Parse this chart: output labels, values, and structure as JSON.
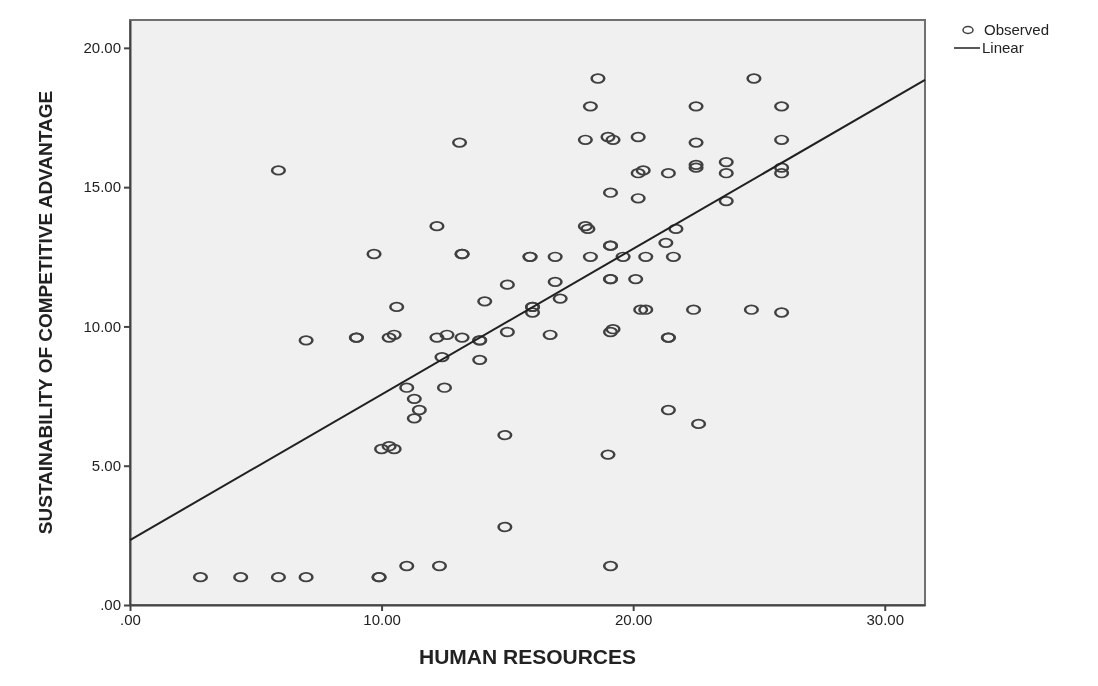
{
  "chart_data": {
    "type": "scatter",
    "xlabel": "HUMAN RESOURCES",
    "ylabel": "SUSTAINABILITY OF COMPETITIVE ADVANTAGE",
    "xlim": [
      0,
      31.6
    ],
    "ylim": [
      0,
      21
    ],
    "xticks": [
      {
        "value": 0,
        "label": ".00"
      },
      {
        "value": 10,
        "label": "10.00"
      },
      {
        "value": 20,
        "label": "20.00"
      },
      {
        "value": 30,
        "label": "30.00"
      }
    ],
    "yticks": [
      {
        "value": 0,
        "label": ".00"
      },
      {
        "value": 5,
        "label": "5.00"
      },
      {
        "value": 10,
        "label": "10.00"
      },
      {
        "value": 15,
        "label": "15.00"
      },
      {
        "value": 20,
        "label": "20.00"
      }
    ],
    "legend": "top right",
    "grid": false,
    "series": [
      {
        "name": "Observed",
        "color": "#404040",
        "marker": "circle",
        "x": [
          2.8,
          4.4,
          5.9,
          7.0,
          9.9,
          9.9,
          11.0,
          12.3,
          19.1,
          14.9,
          14.9,
          19.0,
          10.0,
          10.3,
          10.5,
          11.0,
          11.3,
          11.5,
          11.3,
          12.5,
          21.4,
          22.6,
          7.0,
          9.0,
          9.0,
          10.3,
          10.5,
          12.2,
          12.6,
          13.2,
          13.9,
          13.9,
          15.0,
          13.9,
          12.4,
          16.7,
          19.1,
          19.2,
          21.4,
          21.4,
          10.6,
          14.1,
          15.0,
          16.0,
          16.0,
          16.9,
          17.1,
          20.3,
          20.5,
          22.4,
          24.7,
          25.9,
          12.2,
          13.2,
          13.2,
          9.7,
          15.9,
          15.9,
          16.9,
          18.3,
          18.1,
          18.2,
          19.1,
          19.1,
          19.6,
          20.5,
          21.3,
          21.7,
          21.6,
          19.1,
          19.1,
          20.1,
          5.9,
          13.1,
          18.1,
          19.0,
          19.2,
          20.2,
          18.6,
          18.3,
          19.1,
          20.2,
          20.4,
          21.4,
          20.2,
          22.5,
          22.5,
          24.8,
          25.9,
          25.9,
          22.5,
          22.5,
          23.7,
          23.7,
          25.9,
          25.9,
          23.7,
          16.0
        ],
        "values": [
          1.0,
          1.0,
          1.0,
          1.0,
          1.0,
          1.0,
          1.4,
          1.4,
          1.4,
          2.8,
          6.1,
          5.4,
          5.6,
          5.7,
          5.6,
          7.8,
          7.4,
          7.0,
          6.7,
          7.8,
          7.0,
          6.5,
          9.5,
          9.6,
          9.6,
          9.6,
          9.7,
          9.6,
          9.7,
          9.6,
          9.5,
          9.5,
          9.8,
          8.8,
          8.9,
          9.7,
          9.8,
          9.9,
          9.6,
          9.6,
          10.7,
          10.9,
          11.5,
          10.7,
          10.7,
          11.6,
          11.0,
          10.6,
          10.6,
          10.6,
          10.6,
          10.5,
          13.6,
          12.6,
          12.6,
          12.6,
          12.5,
          12.5,
          12.5,
          12.5,
          13.6,
          13.5,
          12.9,
          12.9,
          12.5,
          12.5,
          13.0,
          13.5,
          12.5,
          11.7,
          11.7,
          11.7,
          15.6,
          16.6,
          16.7,
          16.8,
          16.7,
          16.8,
          18.9,
          17.9,
          14.8,
          15.5,
          15.6,
          15.5,
          14.6,
          17.9,
          16.6,
          18.9,
          17.9,
          16.7,
          15.8,
          15.7,
          15.9,
          15.5,
          15.7,
          15.5,
          14.5,
          10.5
        ]
      },
      {
        "name": "Linear",
        "type": "line",
        "color": "#202020",
        "marker": "none",
        "x": [
          0,
          31.6
        ],
        "values": [
          2.33,
          18.85
        ]
      }
    ]
  }
}
